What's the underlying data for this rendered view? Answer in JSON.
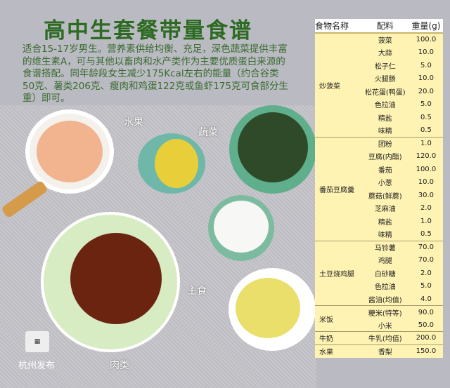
{
  "title": "高中生套餐带量食谱",
  "intro": "适合15-17岁男生。营养素供给均衡、充足，深色蔬菜提供丰富的维生素A，可与其他以畜肉和水产类作为主要优质蛋白来源的食谱搭配。同年龄段女生减少175Kcal左右的能量（约合谷类50克、薯类206克、瘦肉和鸡蛋122克或鱼虾175克可食部分生重）即可。",
  "photo_labels": {
    "fruit": "水果",
    "vegetable": "蔬菜",
    "staple": "主食",
    "meat": "肉类"
  },
  "logo": "杭州发布",
  "table": {
    "headers": [
      "食物名称",
      "配料",
      "重量(g)"
    ],
    "groups": [
      {
        "name": "炒菠菜",
        "items": [
          [
            "菠菜",
            "100.0"
          ],
          [
            "大蒜",
            "10.0"
          ],
          [
            "松子仁",
            "5.0"
          ],
          [
            "火腿肠",
            "10.0"
          ],
          [
            "松花蛋(鸭蛋)",
            "20.0"
          ],
          [
            "色拉油",
            "5.0"
          ],
          [
            "精盐",
            "0.5"
          ],
          [
            "味精",
            "0.5"
          ]
        ]
      },
      {
        "name": "番茄豆腐羹",
        "items": [
          [
            "团粉",
            "1.0"
          ],
          [
            "豆腐(内酯)",
            "120.0"
          ],
          [
            "番茄",
            "100.0"
          ],
          [
            "小葱",
            "10.0"
          ],
          [
            "蘑菇(鲜蘑)",
            "30.0"
          ],
          [
            "芝麻油",
            "2.0"
          ],
          [
            "精盐",
            "1.0"
          ],
          [
            "味精",
            "0.5"
          ]
        ]
      },
      {
        "name": "土豆烧鸡腿",
        "items": [
          [
            "马铃薯",
            "70.0"
          ],
          [
            "鸡腿",
            "70.0"
          ],
          [
            "白砂糖",
            "2.0"
          ],
          [
            "色拉油",
            "5.0"
          ],
          [
            "酱油(均值)",
            "4.0"
          ]
        ]
      },
      {
        "name": "米饭",
        "items": [
          [
            "粳米(特等)",
            "90.0"
          ],
          [
            "小米",
            "50.0"
          ]
        ]
      },
      {
        "name": "牛奶",
        "items": [
          [
            "牛乳(均值)",
            "200.0"
          ]
        ]
      },
      {
        "name": "水果",
        "items": [
          [
            "香梨",
            "150.0"
          ]
        ]
      }
    ]
  }
}
